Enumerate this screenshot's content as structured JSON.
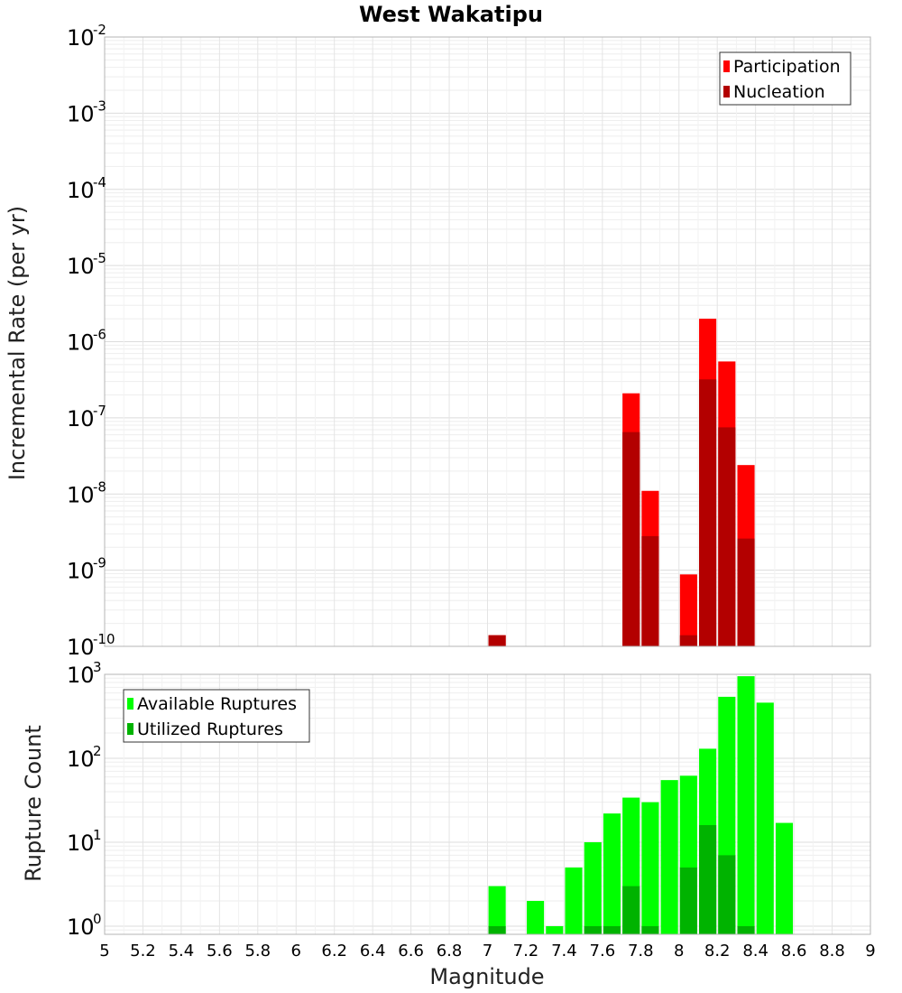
{
  "chart_data": {
    "title": "West Wakatipu",
    "xlabel": "Magnitude",
    "xlim": [
      5,
      9
    ],
    "x_ticks": [
      "5",
      "5.2",
      "5.4",
      "5.6",
      "5.8",
      "6",
      "6.2",
      "6.4",
      "6.6",
      "6.8",
      "7",
      "7.2",
      "7.4",
      "7.6",
      "7.8",
      "8",
      "8.2",
      "8.4",
      "8.6",
      "8.8",
      "9"
    ],
    "bin_width": 0.1,
    "panels": [
      {
        "type": "bar",
        "y_scale": "log",
        "ylabel": "Incremental Rate (per yr)",
        "ylim": [
          1e-10,
          0.01
        ],
        "y_ticks": [
          {
            "base": "10",
            "exp": "-10"
          },
          {
            "base": "10",
            "exp": "-9"
          },
          {
            "base": "10",
            "exp": "-8"
          },
          {
            "base": "10",
            "exp": "-7"
          },
          {
            "base": "10",
            "exp": "-6"
          },
          {
            "base": "10",
            "exp": "-5"
          },
          {
            "base": "10",
            "exp": "-4"
          },
          {
            "base": "10",
            "exp": "-3"
          },
          {
            "base": "10",
            "exp": "-2"
          }
        ],
        "grid": true,
        "legend_position": "top-right",
        "series": [
          {
            "name": "Participation",
            "color": "#ff0000",
            "points": [
              {
                "x": 7.05,
                "y": 1.4e-10
              },
              {
                "x": 7.75,
                "y": 2.1e-07
              },
              {
                "x": 7.85,
                "y": 1.1e-08
              },
              {
                "x": 8.05,
                "y": 8.8e-10
              },
              {
                "x": 8.15,
                "y": 2e-06
              },
              {
                "x": 8.25,
                "y": 5.5e-07
              },
              {
                "x": 8.35,
                "y": 2.4e-08
              }
            ]
          },
          {
            "name": "Nucleation",
            "color": "#b30000",
            "points": [
              {
                "x": 7.05,
                "y": 1.4e-10
              },
              {
                "x": 7.75,
                "y": 6.5e-08
              },
              {
                "x": 7.85,
                "y": 2.8e-09
              },
              {
                "x": 8.05,
                "y": 1.4e-10
              },
              {
                "x": 8.15,
                "y": 3.2e-07
              },
              {
                "x": 8.25,
                "y": 7.5e-08
              },
              {
                "x": 8.35,
                "y": 2.6e-09
              }
            ]
          }
        ]
      },
      {
        "type": "bar",
        "y_scale": "log",
        "ylabel": "Rupture Count",
        "ylim": [
          0.8,
          1000
        ],
        "y_ticks": [
          {
            "base": "10",
            "exp": "0",
            "value": 1
          },
          {
            "base": "10",
            "exp": "1",
            "value": 10
          },
          {
            "base": "10",
            "exp": "2",
            "value": 100
          },
          {
            "base": "10",
            "exp": "3",
            "value": 1000
          }
        ],
        "grid": true,
        "legend_position": "top-left",
        "series": [
          {
            "name": "Available Ruptures",
            "color": "#00ff00",
            "points": [
              {
                "x": 7.05,
                "y": 3
              },
              {
                "x": 7.25,
                "y": 2
              },
              {
                "x": 7.35,
                "y": 1
              },
              {
                "x": 7.45,
                "y": 5
              },
              {
                "x": 7.55,
                "y": 10
              },
              {
                "x": 7.65,
                "y": 22
              },
              {
                "x": 7.75,
                "y": 34
              },
              {
                "x": 7.85,
                "y": 30
              },
              {
                "x": 7.95,
                "y": 55
              },
              {
                "x": 8.05,
                "y": 62
              },
              {
                "x": 8.15,
                "y": 130
              },
              {
                "x": 8.25,
                "y": 540
              },
              {
                "x": 8.35,
                "y": 950
              },
              {
                "x": 8.45,
                "y": 460
              },
              {
                "x": 8.55,
                "y": 17
              }
            ]
          },
          {
            "name": "Utilized Ruptures",
            "color": "#00b300",
            "points": [
              {
                "x": 7.05,
                "y": 1
              },
              {
                "x": 7.55,
                "y": 1
              },
              {
                "x": 7.65,
                "y": 1
              },
              {
                "x": 7.75,
                "y": 3
              },
              {
                "x": 7.85,
                "y": 1
              },
              {
                "x": 8.05,
                "y": 5
              },
              {
                "x": 8.15,
                "y": 16
              },
              {
                "x": 8.25,
                "y": 7
              },
              {
                "x": 8.35,
                "y": 1
              }
            ]
          }
        ]
      }
    ]
  }
}
